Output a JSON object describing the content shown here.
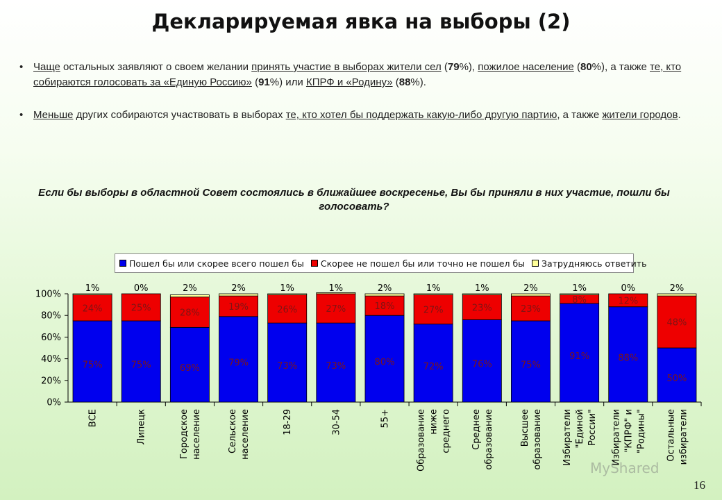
{
  "title": "Декларируемая явка на выборы (2)",
  "bullets": [
    {
      "parts": [
        {
          "t": "Чаще",
          "u": true
        },
        {
          "t": " остальных заявляют о своем желании "
        },
        {
          "t": "принять участие в выборах жители сел",
          "u": true
        },
        {
          "t": " ("
        },
        {
          "t": "79",
          "b": true
        },
        {
          "t": "%), "
        },
        {
          "t": "пожилое население",
          "u": true
        },
        {
          "t": " ("
        },
        {
          "t": "80",
          "b": true
        },
        {
          "t": "%), а также "
        },
        {
          "t": "те, кто собираются голосовать за «Единую Россию»",
          "u": true
        },
        {
          "t": " ("
        },
        {
          "t": "91",
          "b": true
        },
        {
          "t": "%) или "
        },
        {
          "t": "КПРФ и «Родину»",
          "u": true
        },
        {
          "t": " ("
        },
        {
          "t": "88",
          "b": true
        },
        {
          "t": "%)."
        }
      ]
    },
    {
      "parts": [
        {
          "t": "Меньше",
          "u": true
        },
        {
          "t": " других собираются участвовать в выборах "
        },
        {
          "t": "те, кто хотел бы поддержать какую-либо другую партию",
          "u": true
        },
        {
          "t": ", а также "
        },
        {
          "t": "жители городов",
          "u": true
        },
        {
          "t": "."
        }
      ]
    }
  ],
  "question": "Если бы выборы в областной Совет состоялись в ближайшее воскресенье, Вы бы приняли в них участие, пошли бы голосовать?",
  "page_number": "16",
  "watermark": "MyShared",
  "chart_data": {
    "type": "bar",
    "stacked": true,
    "ylim": [
      0,
      100
    ],
    "yticks": [
      "0%",
      "20%",
      "40%",
      "60%",
      "80%",
      "100%"
    ],
    "legend_position": "top",
    "categories": [
      [
        "ВСЕ"
      ],
      [
        "Липецк"
      ],
      [
        "Городское",
        "население"
      ],
      [
        "Сельское",
        "население"
      ],
      [
        "18-29"
      ],
      [
        "30-54"
      ],
      [
        "55+"
      ],
      [
        "Образование",
        "ниже",
        "среднего"
      ],
      [
        "Среднее",
        "образование"
      ],
      [
        "Высшее",
        "образование"
      ],
      [
        "Избиратели",
        "\"Единой",
        "России\""
      ],
      [
        "Избиратели",
        "\"КПРФ\" и",
        "\"Родины\""
      ],
      [
        "Остальные",
        "избиратели"
      ]
    ],
    "series": [
      {
        "name": "Пошел бы или скорее всего пошел бы",
        "color": "#0000ee",
        "values": [
          75,
          75,
          69,
          79,
          73,
          73,
          80,
          72,
          76,
          75,
          91,
          88,
          50
        ]
      },
      {
        "name": "Скорее не пошел бы или точно не пошел бы",
        "color": "#ee0000",
        "values": [
          24,
          25,
          28,
          19,
          26,
          27,
          18,
          27,
          23,
          23,
          8,
          12,
          48
        ]
      },
      {
        "name": "Затрудняюсь ответить",
        "color": "#ffff99",
        "values": [
          1,
          0,
          2,
          2,
          1,
          1,
          2,
          1,
          1,
          2,
          1,
          0,
          2
        ]
      }
    ]
  }
}
